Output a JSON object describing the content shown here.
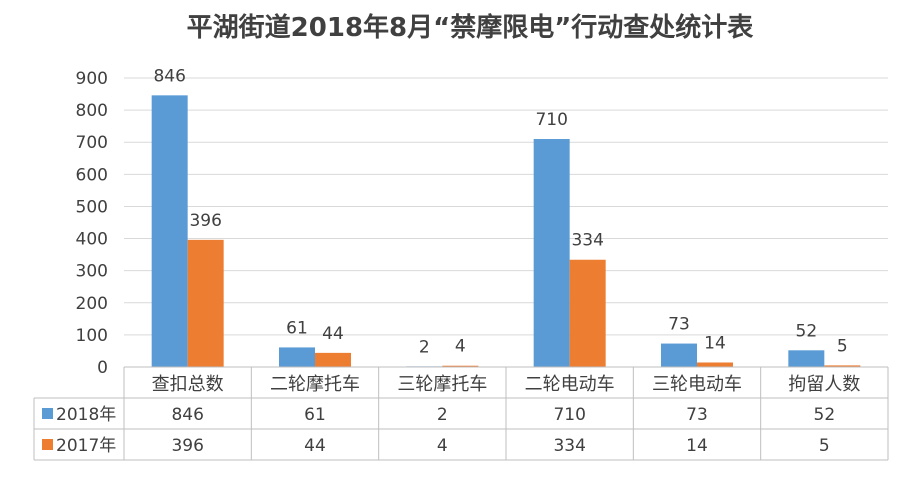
{
  "chart_data": {
    "type": "bar",
    "title": "平湖街道2018年8月“禁摩限电”行动查处统计表",
    "categories": [
      "查扣总数",
      "二轮摩托车",
      "三轮摩托车",
      "二轮电动车",
      "三轮电动车",
      "拘留人数"
    ],
    "series": [
      {
        "name": "2018年",
        "color": "#5B9BD5",
        "values": [
          846,
          61,
          2,
          710,
          73,
          52
        ]
      },
      {
        "name": "2017年",
        "color": "#ED7D31",
        "values": [
          396,
          44,
          4,
          334,
          14,
          5
        ]
      }
    ],
    "yticks": [
      0,
      100,
      200,
      300,
      400,
      500,
      600,
      700,
      800,
      900
    ],
    "ylim": [
      0,
      900
    ],
    "grid": true,
    "legend": "data-table"
  }
}
